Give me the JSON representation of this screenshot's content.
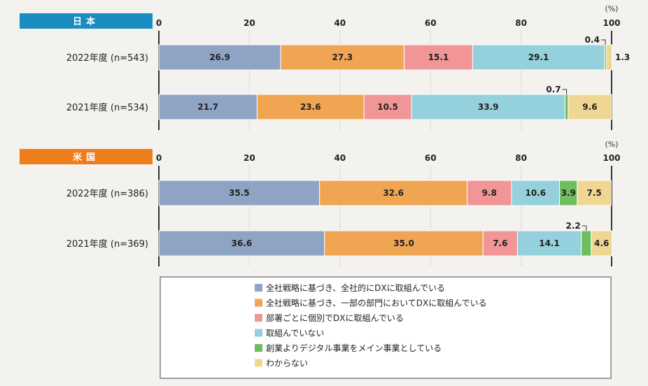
{
  "unit_label": "(%)",
  "colors": [
    "#8fa3c4",
    "#f0a552",
    "#f19596",
    "#94d1dc",
    "#6ebd5f",
    "#efd793"
  ],
  "chart_data": {
    "type": "bar",
    "orientation": "horizontal",
    "stacked": true,
    "xlim": [
      0,
      100
    ],
    "ticks": [
      "0",
      "20",
      "40",
      "60",
      "80",
      "100"
    ],
    "legend": [
      "全社戦略に基づき、全社的にDXに取組んでいる",
      "全社戦略に基づき、一部の部門においてDXに取組んでいる",
      "部署ごとに個別でDXに取組んでいる",
      "取組んでいない",
      "創業よりデジタル事業をメイン事業としている",
      "わからない"
    ],
    "panels": [
      {
        "tag": "日本",
        "tag_color": "#1b8ec1",
        "rows": [
          {
            "label": "2022年度 (n=543)",
            "values": [
              26.9,
              27.3,
              15.1,
              29.1,
              0.4,
              1.3
            ],
            "labels": [
              "26.9",
              "27.3",
              "15.1",
              "29.1",
              "0.4",
              "1.3"
            ]
          },
          {
            "label": "2021年度 (n=534)",
            "values": [
              21.7,
              23.6,
              10.5,
              33.9,
              0.7,
              9.6
            ],
            "labels": [
              "21.7",
              "23.6",
              "10.5",
              "33.9",
              "0.7",
              "9.6"
            ]
          }
        ]
      },
      {
        "tag": "米国",
        "tag_color": "#ee7d1e",
        "rows": [
          {
            "label": "2022年度 (n=386)",
            "values": [
              35.5,
              32.6,
              9.8,
              10.6,
              3.9,
              7.5
            ],
            "labels": [
              "35.5",
              "32.6",
              "9.8",
              "10.6",
              "3.9",
              "7.5"
            ]
          },
          {
            "label": "2021年度 (n=369)",
            "values": [
              36.6,
              35.0,
              7.6,
              14.1,
              2.2,
              4.6
            ],
            "labels": [
              "36.6",
              "35.0",
              "7.6",
              "14.1",
              "2.2",
              "4.6"
            ]
          }
        ]
      }
    ]
  }
}
